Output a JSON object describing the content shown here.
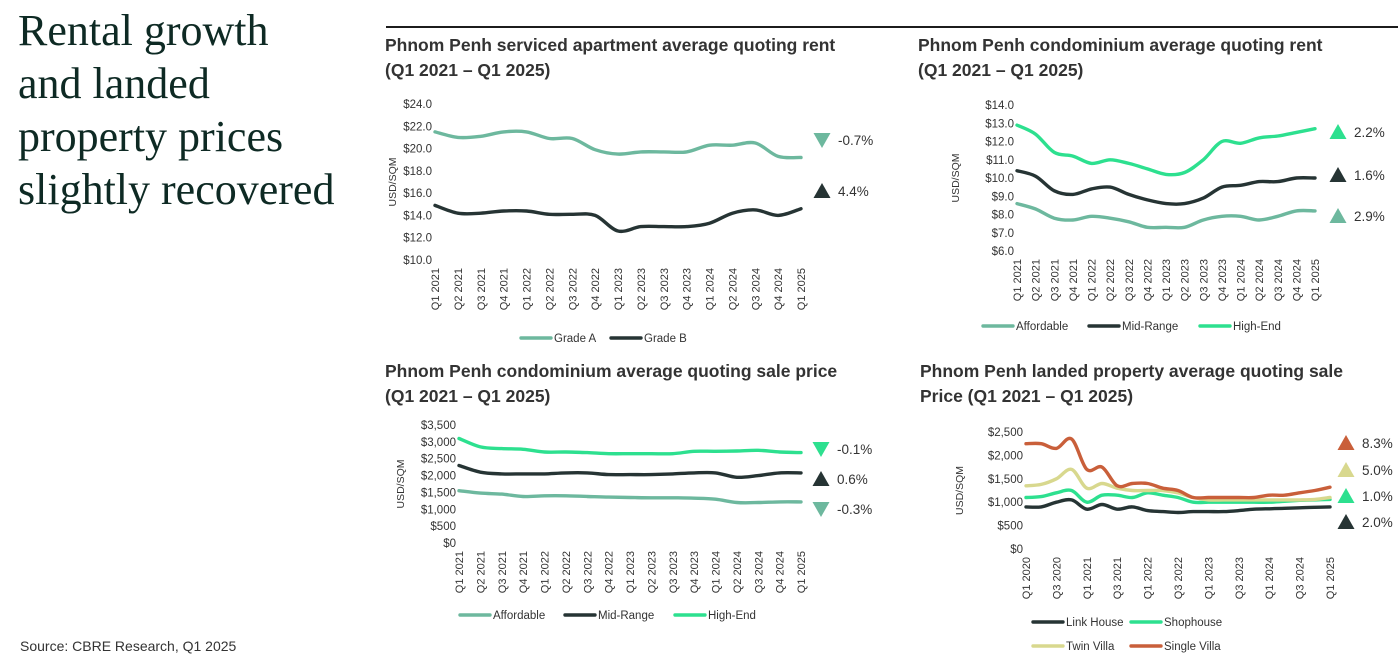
{
  "headline": "Rental growth\nand landed\nproperty prices\nslightly recovered",
  "source": "Source: CBRE Research, Q1 2025",
  "chart_data": [
    {
      "type": "line",
      "title_line1": "Phnom Penh serviced apartment average quoting rent",
      "title_line2": "(Q1 2021 – Q1 2025)",
      "ylabel": "USD/SQM",
      "ylim": [
        10,
        24
      ],
      "yticks": [
        10,
        12,
        14,
        16,
        18,
        20,
        22,
        24
      ],
      "ytick_labels": [
        "$10.0",
        "$12.0",
        "$14.0",
        "$16.0",
        "$18.0",
        "$20.0",
        "$22.0",
        "$24.0"
      ],
      "categories": [
        "Q1 2021",
        "Q2 2021",
        "Q3 2021",
        "Q4 2021",
        "Q1 2022",
        "Q2 2022",
        "Q3 2022",
        "Q4 2022",
        "Q1 2023",
        "Q2 2023",
        "Q3 2023",
        "Q4 2023",
        "Q1 2024",
        "Q2 2024",
        "Q3 2024",
        "Q4 2024",
        "Q1 2025"
      ],
      "series": [
        {
          "name": "Grade A",
          "color": "#6db89e",
          "change": "-0.7%",
          "direction": "down",
          "values": [
            21.5,
            21.0,
            21.1,
            21.5,
            21.5,
            20.9,
            20.9,
            19.9,
            19.5,
            19.7,
            19.7,
            19.7,
            20.3,
            20.3,
            20.5,
            19.3,
            19.2
          ]
        },
        {
          "name": "Grade B",
          "color": "#263434",
          "change": "4.4%",
          "direction": "up",
          "values": [
            14.9,
            14.2,
            14.2,
            14.4,
            14.4,
            14.1,
            14.1,
            14.0,
            12.6,
            13.0,
            13.0,
            13.0,
            13.3,
            14.2,
            14.5,
            14.0,
            14.6
          ]
        }
      ]
    },
    {
      "type": "line",
      "title_line1": "Phnom Penh condominium average quoting rent",
      "title_line2": "(Q1 2021 – Q1 2025)",
      "ylabel": "USD/SQM",
      "ylim": [
        6,
        14
      ],
      "yticks": [
        6,
        7,
        8,
        9,
        10,
        11,
        12,
        13,
        14
      ],
      "ytick_labels": [
        "$6.0",
        "$7.0",
        "$8.0",
        "$9.0",
        "$10.0",
        "$11.0",
        "$12.0",
        "$13.0",
        "$14.0"
      ],
      "categories": [
        "Q1 2021",
        "Q2 2021",
        "Q3 2021",
        "Q4 2021",
        "Q1 2022",
        "Q2 2022",
        "Q3 2022",
        "Q4 2022",
        "Q1 2023",
        "Q2 2023",
        "Q3 2023",
        "Q4 2023",
        "Q1 2024",
        "Q2 2024",
        "Q3 2024",
        "Q4 2024",
        "Q1 2025"
      ],
      "series": [
        {
          "name": "Affordable",
          "color": "#6db89e",
          "change": "2.9%",
          "direction": "up",
          "values": [
            8.6,
            8.3,
            7.8,
            7.7,
            7.9,
            7.8,
            7.6,
            7.3,
            7.3,
            7.3,
            7.7,
            7.9,
            7.9,
            7.7,
            7.9,
            8.2,
            8.2
          ]
        },
        {
          "name": "Mid-Range",
          "color": "#263434",
          "change": "1.6%",
          "direction": "up",
          "values": [
            10.4,
            10.1,
            9.3,
            9.1,
            9.4,
            9.5,
            9.1,
            8.8,
            8.6,
            8.6,
            8.9,
            9.5,
            9.6,
            9.8,
            9.8,
            10.0,
            10.0
          ]
        },
        {
          "name": "High-End",
          "color": "#2de08f",
          "change": "2.2%",
          "direction": "up",
          "values": [
            12.9,
            12.4,
            11.4,
            11.2,
            10.8,
            11.0,
            10.8,
            10.5,
            10.2,
            10.3,
            11.0,
            12.0,
            11.9,
            12.2,
            12.3,
            12.5,
            12.7
          ]
        }
      ]
    },
    {
      "type": "line",
      "title_line1": "Phnom Penh condominium average quoting sale price",
      "title_line2": "(Q1 2021 – Q1 2025)",
      "ylabel": "USD/SQM",
      "ylim": [
        0,
        3500
      ],
      "yticks": [
        0,
        500,
        1000,
        1500,
        2000,
        2500,
        3000,
        3500
      ],
      "ytick_labels": [
        "$0",
        "$500",
        "$1,000",
        "$1,500",
        "$2,000",
        "$2,500",
        "$3,000",
        "$3,500"
      ],
      "categories": [
        "Q1 2021",
        "Q2 2021",
        "Q3 2021",
        "Q4 2021",
        "Q1 2022",
        "Q2 2022",
        "Q3 2022",
        "Q4 2022",
        "Q1 2023",
        "Q2 2023",
        "Q3 2023",
        "Q4 2023",
        "Q1 2024",
        "Q2 2024",
        "Q3 2024",
        "Q4 2024",
        "Q1 2025"
      ],
      "series": [
        {
          "name": "Affordable",
          "color": "#6db89e",
          "change": "-0.3%",
          "direction": "down",
          "values": [
            1550,
            1480,
            1450,
            1380,
            1400,
            1400,
            1380,
            1360,
            1350,
            1340,
            1340,
            1330,
            1300,
            1200,
            1200,
            1220,
            1220
          ]
        },
        {
          "name": "Mid-Range",
          "color": "#263434",
          "change": "0.6%",
          "direction": "up",
          "values": [
            2300,
            2100,
            2050,
            2050,
            2050,
            2080,
            2080,
            2030,
            2030,
            2030,
            2050,
            2080,
            2080,
            1950,
            2000,
            2080,
            2080
          ]
        },
        {
          "name": "High-End",
          "color": "#2de08f",
          "change": "-0.1%",
          "direction": "down",
          "values": [
            3100,
            2850,
            2800,
            2780,
            2700,
            2700,
            2680,
            2650,
            2650,
            2650,
            2650,
            2720,
            2720,
            2730,
            2750,
            2700,
            2680
          ]
        }
      ]
    },
    {
      "type": "line",
      "title_line1": "Phnom Penh landed property average quoting sale",
      "title_line2": "Price (Q1 2021 – Q1 2025)",
      "ylabel": "USD/SQM",
      "ylim": [
        0,
        2500
      ],
      "yticks": [
        0,
        500,
        1000,
        1500,
        2000,
        2500
      ],
      "ytick_labels": [
        "$0",
        "$500",
        "$1,000",
        "$1,500",
        "$2,000",
        "$2,500"
      ],
      "categories": [
        "Q1 2020",
        "Q2 2020",
        "Q3 2020",
        "Q4 2020",
        "Q1 2021",
        "Q2 2021",
        "Q3 2021",
        "Q4 2021",
        "Q1 2022",
        "Q2 2022",
        "Q3 2022",
        "Q4 2022",
        "Q1 2023",
        "Q2 2023",
        "Q3 2023",
        "Q4 2023",
        "Q1 2024",
        "Q2 2024",
        "Q3 2024",
        "Q4 2024",
        "Q1 2025"
      ],
      "tick_labels_shown": [
        "Q1 2020",
        "Q3 2020",
        "Q1 2021",
        "Q3 2021",
        "Q1 2022",
        "Q3 2022",
        "Q1 2023",
        "Q3 2023",
        "Q1 2024",
        "Q3 2024",
        "Q1 2025"
      ],
      "legend_rows": [
        [
          "Link House",
          "Shophouse"
        ],
        [
          "Twin Villa",
          "Single Villa"
        ]
      ],
      "series": [
        {
          "name": "Link House",
          "color": "#263434",
          "change": "2.0%",
          "direction": "up",
          "values": [
            900,
            900,
            1000,
            1050,
            850,
            950,
            850,
            900,
            820,
            800,
            780,
            800,
            800,
            800,
            820,
            850,
            860,
            870,
            880,
            890,
            900
          ]
        },
        {
          "name": "Shophouse",
          "color": "#2de08f",
          "change": "1.0%",
          "direction": "up",
          "values": [
            1100,
            1120,
            1200,
            1250,
            1000,
            1150,
            1150,
            1100,
            1200,
            1150,
            1100,
            1000,
            1000,
            1000,
            1000,
            1000,
            1000,
            1020,
            1040,
            1050,
            1060
          ]
        },
        {
          "name": "Twin Villa",
          "color": "#d8d88e",
          "change": "5.0%",
          "direction": "up",
          "values": [
            1350,
            1380,
            1500,
            1700,
            1300,
            1400,
            1300,
            1250,
            1250,
            1250,
            1200,
            1100,
            1050,
            1050,
            1050,
            1050,
            1050,
            1050,
            1050,
            1060,
            1100
          ]
        },
        {
          "name": "Single Villa",
          "color": "#c95f3a",
          "change": "8.3%",
          "direction": "up",
          "values": [
            2250,
            2250,
            2150,
            2350,
            1700,
            1750,
            1350,
            1400,
            1400,
            1300,
            1250,
            1100,
            1100,
            1100,
            1100,
            1100,
            1150,
            1150,
            1200,
            1250,
            1320
          ]
        }
      ]
    }
  ]
}
